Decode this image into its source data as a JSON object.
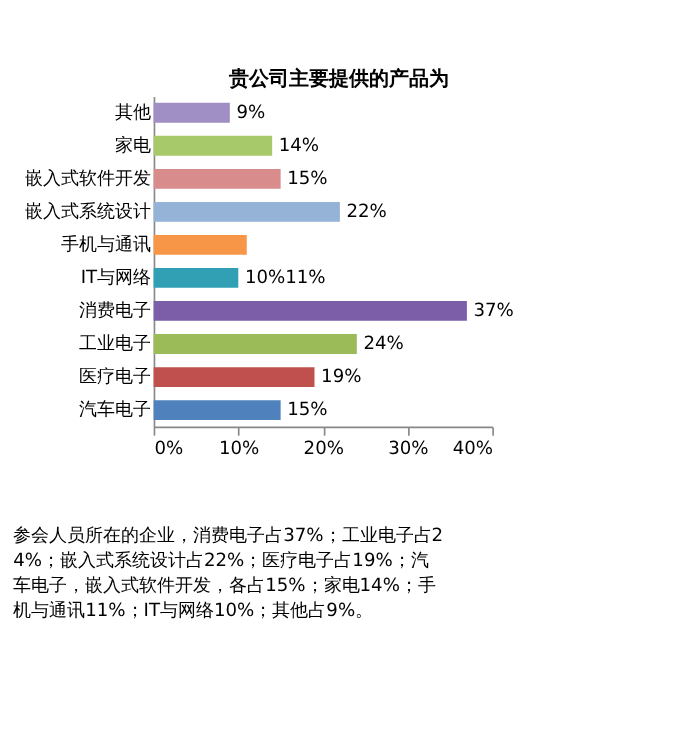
{
  "chart_data": {
    "type": "bar",
    "orientation": "horizontal",
    "title": "贵公司主要提供的产品为",
    "categories": [
      "其他",
      "家电",
      "嵌入式软件开发",
      "嵌入式系统设计",
      "手机与通讯",
      "IT与网络",
      "消费电子",
      "工业电子",
      "医疗电子",
      "汽车电子"
    ],
    "values": [
      9,
      14,
      15,
      22,
      11,
      10,
      37,
      24,
      19,
      15
    ],
    "colors": [
      "#9f8fc4",
      "#a8c96a",
      "#d98c8c",
      "#95b3d7",
      "#f79646",
      "#31a0b5",
      "#7b5ea7",
      "#9bbb59",
      "#c0504d",
      "#4f81bd"
    ],
    "value_labels": [
      "9%",
      "14%",
      "15%",
      "22%",
      null,
      "10%11%",
      "37%",
      "24%",
      "19%",
      "15%"
    ],
    "xlim": [
      0,
      40
    ],
    "xticks": [
      {
        "value": 0,
        "label": "0%"
      },
      {
        "value": 10,
        "label": "10%"
      },
      {
        "value": 20,
        "label": "20%"
      },
      {
        "value": 30,
        "label": "30%"
      },
      {
        "value": 40,
        "label": "40%"
      }
    ],
    "grid": false,
    "legend": false,
    "annotations": [
      "参会人员所在的企业，消费电子占37%；工业电子占24%；嵌入式系统设计占22%；医疗电子占19%；汽车电子，嵌入式软件开发，各占15%；家电14%；手机与通讯11%；IT与网络10%；其他占9%。"
    ]
  }
}
